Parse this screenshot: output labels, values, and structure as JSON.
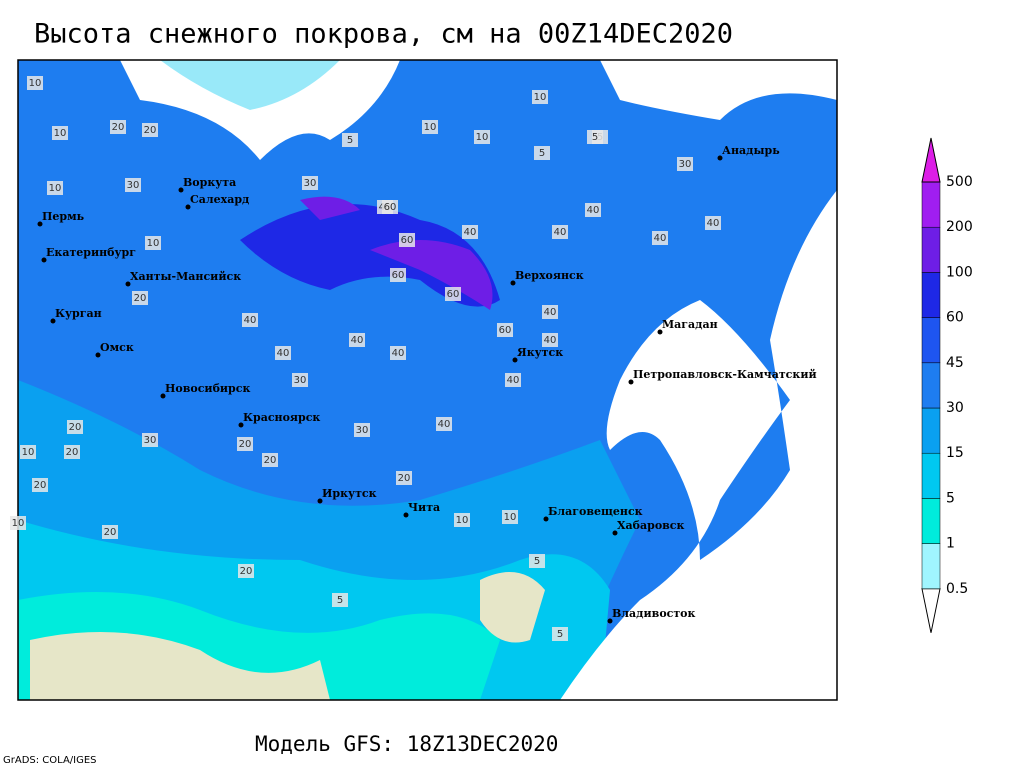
{
  "title": "Высота снежного покрова, см на 00Z14DEC2020",
  "footer": "Модель GFS: 18Z13DEC2020",
  "credit": "GrADS: COLA/IGES",
  "cities": [
    "Воркута",
    "Салехард",
    "Пермь",
    "Екатеринбург",
    "Ханты-Мансийск",
    "Курган",
    "Омск",
    "Новосибирск",
    "Красноярск",
    "Иркутск",
    "Чита",
    "Благовещенск",
    "Хабаровск",
    "Владивосток",
    "Якутск",
    "Верхоянск",
    "Магадан",
    "Петропавловск-Камчатский",
    "Анадырь"
  ],
  "contour_labels": [
    10,
    10,
    20,
    20,
    10,
    30,
    20,
    10,
    20,
    10,
    5,
    10,
    10,
    5,
    5,
    30,
    40,
    60,
    60,
    60,
    40,
    40,
    40,
    40,
    40,
    30,
    40,
    40,
    30,
    40,
    40,
    60,
    40,
    40,
    20,
    20,
    30,
    20,
    20,
    20,
    10,
    10,
    10,
    5,
    5,
    5,
    5,
    20,
    20,
    10,
    30,
    40,
    40,
    60
  ],
  "legend": {
    "levels": [
      0.5,
      1,
      5,
      15,
      30,
      45,
      60,
      100,
      200,
      500
    ],
    "colors": [
      "#ffffff",
      "#a0f5ff",
      "#00ecdc",
      "#00c8f0",
      "#0aa0f0",
      "#1e7df0",
      "#1e55f0",
      "#1e28e6",
      "#6e1ee6",
      "#a01ef0",
      "#dc1ee6"
    ]
  }
}
